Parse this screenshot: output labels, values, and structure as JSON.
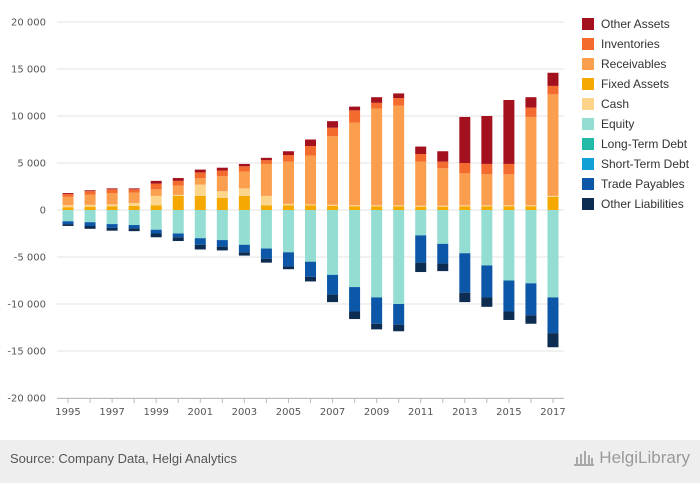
{
  "chart_data": {
    "type": "bar",
    "stacked": true,
    "title": "",
    "xlabel": "",
    "ylabel": "",
    "ylim": [
      -20000,
      20000
    ],
    "yticks": [
      20000,
      15000,
      10000,
      5000,
      0,
      -5000,
      -10000,
      -15000,
      -20000
    ],
    "ytick_labels": [
      "20 000",
      "15 000",
      "10 000",
      "5 000",
      "0",
      "-5 000",
      "-10 000",
      "-15 000",
      "-20 000"
    ],
    "categories": [
      "1995",
      "1996",
      "1997",
      "1998",
      "1999",
      "2000",
      "2001",
      "2002",
      "2003",
      "2004",
      "2005",
      "2006",
      "2007",
      "2008",
      "2009",
      "2010",
      "2011",
      "2012",
      "2013",
      "2014",
      "2015",
      "2016",
      "2017"
    ],
    "x_tick_labels": [
      "1995",
      "1997",
      "1999",
      "2001",
      "2003",
      "2005",
      "2007",
      "2009",
      "2011",
      "2013",
      "2015",
      "2017"
    ],
    "grid": true,
    "legend_position": "right",
    "positive_series": [
      {
        "name": "Fixed Assets",
        "color": "#f5a800",
        "values": [
          300,
          350,
          400,
          450,
          500,
          1500,
          1500,
          1300,
          1500,
          500,
          500,
          500,
          450,
          400,
          400,
          400,
          350,
          350,
          400,
          400,
          400,
          400,
          1400
        ]
      },
      {
        "name": "Cash",
        "color": "#fdd58a",
        "values": [
          200,
          200,
          200,
          300,
          1000,
          100,
          1200,
          700,
          800,
          1000,
          150,
          100,
          100,
          100,
          100,
          100,
          100,
          100,
          100,
          100,
          100,
          100,
          100
        ]
      },
      {
        "name": "Receivables",
        "color": "#fb9e4e",
        "values": [
          900,
          1100,
          1200,
          1100,
          700,
          1000,
          700,
          1600,
          1800,
          3400,
          4500,
          5200,
          7300,
          8800,
          10300,
          10600,
          4700,
          4000,
          3400,
          3300,
          3300,
          9400,
          10800
        ]
      },
      {
        "name": "Inventories",
        "color": "#f36b2f",
        "values": [
          300,
          350,
          400,
          350,
          600,
          500,
          600,
          600,
          550,
          400,
          700,
          1000,
          900,
          1300,
          600,
          800,
          800,
          700,
          1100,
          1100,
          1100,
          1000,
          900
        ]
      },
      {
        "name": "Other Assets",
        "color": "#a3111f",
        "values": [
          100,
          100,
          100,
          100,
          300,
          300,
          300,
          300,
          250,
          250,
          400,
          700,
          700,
          400,
          600,
          500,
          800,
          1100,
          4900,
          5100,
          6800,
          1100,
          1400
        ]
      }
    ],
    "negative_series": [
      {
        "name": "Equity",
        "color": "#93ddd3",
        "values": [
          -1200,
          -1300,
          -1500,
          -1600,
          -2100,
          -2500,
          -3000,
          -3200,
          -3700,
          -4100,
          -4500,
          -5500,
          -6900,
          -8200,
          -9300,
          -10000,
          -2700,
          -3600,
          -4600,
          -5900,
          -7500,
          -7800,
          -9300
        ]
      },
      {
        "name": "Long-Term Debt",
        "color": "#25b9a8",
        "values": [
          0,
          0,
          0,
          0,
          0,
          0,
          0,
          0,
          0,
          0,
          0,
          0,
          0,
          0,
          0,
          0,
          0,
          0,
          0,
          0,
          0,
          0,
          0
        ]
      },
      {
        "name": "Short-Term Debt",
        "color": "#11a1d4",
        "values": [
          0,
          0,
          0,
          0,
          0,
          0,
          0,
          0,
          0,
          0,
          0,
          0,
          0,
          0,
          0,
          0,
          0,
          0,
          0,
          0,
          0,
          0,
          0
        ]
      },
      {
        "name": "Trade Payables",
        "color": "#0c57a7",
        "values": [
          -300,
          -400,
          -400,
          -350,
          -400,
          -400,
          -700,
          -700,
          -800,
          -1100,
          -1500,
          -1600,
          -2100,
          -2600,
          -2800,
          -2200,
          -2900,
          -2100,
          -4200,
          -3400,
          -3300,
          -3400,
          -3800
        ]
      },
      {
        "name": "Other Liabilities",
        "color": "#0c2c52",
        "values": [
          -200,
          -300,
          -300,
          -300,
          -400,
          -400,
          -500,
          -400,
          -350,
          -400,
          -300,
          -500,
          -800,
          -800,
          -600,
          -700,
          -1000,
          -800,
          -1000,
          -1000,
          -900,
          -900,
          -1500
        ]
      }
    ],
    "legend": [
      {
        "label": "Other Assets",
        "color": "#a3111f"
      },
      {
        "label": "Inventories",
        "color": "#f36b2f"
      },
      {
        "label": "Receivables",
        "color": "#fb9e4e"
      },
      {
        "label": "Fixed Assets",
        "color": "#f5a800"
      },
      {
        "label": "Cash",
        "color": "#fdd58a"
      },
      {
        "label": "Equity",
        "color": "#93ddd3"
      },
      {
        "label": "Long-Term Debt",
        "color": "#25b9a8"
      },
      {
        "label": "Short-Term Debt",
        "color": "#11a1d4"
      },
      {
        "label": "Trade Payables",
        "color": "#0c57a7"
      },
      {
        "label": "Other Liabilities",
        "color": "#0c2c52"
      }
    ]
  },
  "footer": {
    "source": "Source: Company Data, Helgi Analytics",
    "brand": "HelgiLibrary",
    "brand_icon": "building-icon"
  }
}
